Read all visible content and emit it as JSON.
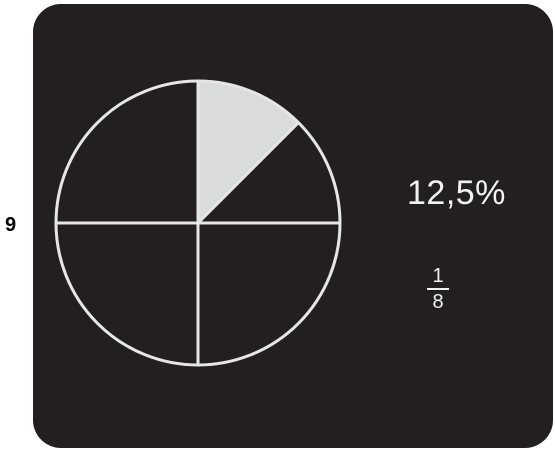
{
  "item_number": "9",
  "pie": {
    "total_parts": 8,
    "shaded_parts": 1,
    "quarter_divisions": 4,
    "outline_color": "#e6e6e6",
    "fill_color": "#d9dcda",
    "background_color": "#231f20"
  },
  "labels": {
    "percent": "12,5%",
    "fraction_numerator": "1",
    "fraction_denominator": "8"
  }
}
